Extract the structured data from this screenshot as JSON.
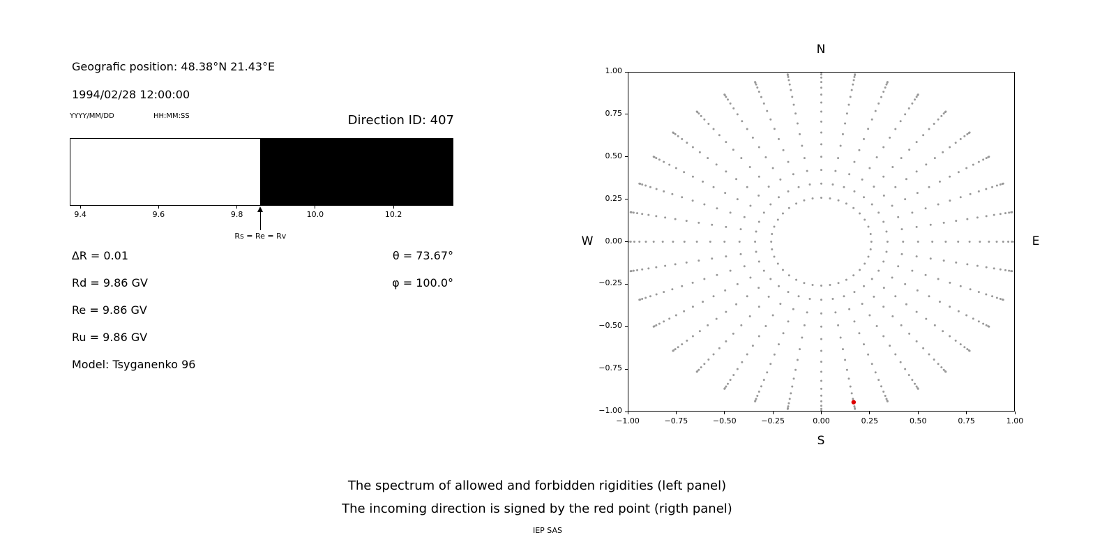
{
  "info": {
    "position": "Geografic position: 48.38°N 21.43°E",
    "datetime": "1994/02/28 12:00:00",
    "date_format": "YYYY/MM/DD",
    "time_format": "HH:MM:SS",
    "direction_id": "Direction ID: 407",
    "delta_r": "∆R = 0.01",
    "rd": "Rd = 9.86 GV",
    "re": "Re = 9.86 GV",
    "ru": "Ru = 9.86 GV",
    "model": "Model: Tsyganenko 96",
    "theta": "θ = 73.67°",
    "phi": "φ = 100.0°"
  },
  "captions": {
    "line1": "The spectrum of allowed and forbidden rigidities (left panel)",
    "line2": "The incoming direction is signed by the red point (rigth panel)",
    "credit": "IEP SAS"
  },
  "chart_data": [
    {
      "id": "rigidity-spectrum",
      "type": "bar",
      "title": "",
      "xlabel": "",
      "ylabel": "",
      "xlim": [
        9.373,
        10.353
      ],
      "xticks": [
        "9.4",
        "9.6",
        "9.8",
        "10.0",
        "10.2"
      ],
      "regions": [
        {
          "name": "allowed",
          "from": 9.373,
          "to": 9.86,
          "color": "#ffffff"
        },
        {
          "name": "forbidden",
          "from": 9.86,
          "to": 10.353,
          "color": "#000000"
        }
      ],
      "annotation": {
        "label": "Rs = Re = Rv",
        "x": 9.86
      }
    },
    {
      "id": "incoming-direction",
      "type": "scatter",
      "title": "",
      "xlabel": "",
      "ylabel": "",
      "xlim": [
        -1,
        1
      ],
      "ylim": [
        -1,
        1
      ],
      "grid": false,
      "xticks": [
        "−1.00",
        "−0.75",
        "−0.50",
        "−0.25",
        "0.00",
        "0.25",
        "0.50",
        "0.75",
        "1.00"
      ],
      "yticks": [
        "1.00",
        "0.75",
        "0.50",
        "0.25",
        "0.00",
        "−0.25",
        "−0.50",
        "−0.75",
        "−1.00"
      ],
      "compass": {
        "top": "N",
        "bottom": "S",
        "left": "W",
        "right": "E"
      },
      "grid_dots": {
        "color": "#999999",
        "marker_radius_px": 1.5,
        "azimuth_start_deg": 0,
        "azimuth_step_deg": 10,
        "azimuth_count": 36,
        "zenith_angles_deg": [
          15,
          20,
          25,
          30,
          35,
          40,
          45,
          50,
          55,
          60,
          65,
          70,
          75,
          80,
          85,
          90
        ],
        "radius_rule": "sin(zenith)"
      },
      "red_point": {
        "x": 0.167,
        "y": -0.945,
        "color": "#dd0000",
        "meaning": "incoming direction"
      }
    }
  ]
}
